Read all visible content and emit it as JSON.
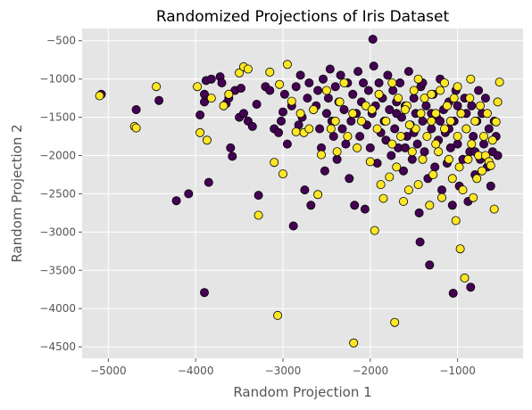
{
  "chart_data": {
    "type": "scatter",
    "title": "Randomized Projections of Iris Dataset",
    "xlabel": "Random Projection 1",
    "ylabel": "Random Projection 2",
    "xlim": [
      -5300,
      -250
    ],
    "ylim": [
      -4650,
      -340
    ],
    "xticks": [
      -5000,
      -4000,
      -3000,
      -2000,
      -1000
    ],
    "yticks": [
      -4500,
      -4000,
      -3500,
      -3000,
      -2500,
      -2000,
      -1500,
      -1000,
      -500
    ],
    "xtick_labels": [
      "−5000",
      "−4000",
      "−3000",
      "−2000",
      "−1000"
    ],
    "ytick_labels": [
      "−4500",
      "−4000",
      "−3500",
      "−3000",
      "−2500",
      "−2000",
      "−1500",
      "−1000",
      "−500"
    ],
    "grid": true,
    "style": "ggplot",
    "series": [
      {
        "color": "#440154",
        "points": [
          [
            -5080,
            -1200
          ],
          [
            -4680,
            -1400
          ],
          [
            -4420,
            -1280
          ],
          [
            -4220,
            -2590
          ],
          [
            -4080,
            -2500
          ],
          [
            -3950,
            -1470
          ],
          [
            -3900,
            -1300
          ],
          [
            -3900,
            -1200
          ],
          [
            -3880,
            -1020
          ],
          [
            -3850,
            -2350
          ],
          [
            -3820,
            -1000
          ],
          [
            -3900,
            -3790
          ],
          [
            -3720,
            -970
          ],
          [
            -3700,
            -1050
          ],
          [
            -3650,
            -1320
          ],
          [
            -3620,
            -1250
          ],
          [
            -3600,
            -1900
          ],
          [
            -3580,
            -2010
          ],
          [
            -3550,
            -1150
          ],
          [
            -3500,
            -1500
          ],
          [
            -3480,
            -1120
          ],
          [
            -3450,
            -1450
          ],
          [
            -3400,
            -1550
          ],
          [
            -3350,
            -1620
          ],
          [
            -3300,
            -1330
          ],
          [
            -3280,
            -2520
          ],
          [
            -3200,
            -1100
          ],
          [
            -3150,
            -1150
          ],
          [
            -3100,
            -1650
          ],
          [
            -3050,
            -1700
          ],
          [
            -3020,
            -1550
          ],
          [
            -3000,
            -1430
          ],
          [
            -2980,
            -1200
          ],
          [
            -2950,
            -1850
          ],
          [
            -2900,
            -1350
          ],
          [
            -2880,
            -2920
          ],
          [
            -2850,
            -1100
          ],
          [
            -2820,
            -1600
          ],
          [
            -2800,
            -950
          ],
          [
            -2780,
            -1500
          ],
          [
            -2750,
            -2450
          ],
          [
            -2720,
            -1250
          ],
          [
            -2700,
            -1050
          ],
          [
            -2680,
            -2650
          ],
          [
            -2650,
            -1400
          ],
          [
            -2620,
            -1350
          ],
          [
            -2600,
            -1150
          ],
          [
            -2580,
            -1650
          ],
          [
            -2560,
            -1900
          ],
          [
            -2540,
            -1000
          ],
          [
            -2520,
            -2200
          ],
          [
            -2500,
            -1450
          ],
          [
            -2480,
            -1250
          ],
          [
            -2460,
            -870
          ],
          [
            -2440,
            -1550
          ],
          [
            -2420,
            -1750
          ],
          [
            -2400,
            -1100
          ],
          [
            -2380,
            -2050
          ],
          [
            -2360,
            -1300
          ],
          [
            -2340,
            -950
          ],
          [
            -2320,
            -1650
          ],
          [
            -2300,
            -1400
          ],
          [
            -2280,
            -1850
          ],
          [
            -2260,
            -1050
          ],
          [
            -2240,
            -2300
          ],
          [
            -2220,
            -1550
          ],
          [
            -2200,
            -1200
          ],
          [
            -2180,
            -2650
          ],
          [
            -2160,
            -1450
          ],
          [
            -2140,
            -900
          ],
          [
            -2120,
            -1750
          ],
          [
            -2100,
            -1300
          ],
          [
            -2080,
            -1050
          ],
          [
            -2060,
            -2700
          ],
          [
            -2040,
            -1600
          ],
          [
            -2020,
            -1150
          ],
          [
            -2000,
            -1900
          ],
          [
            -1980,
            -1450
          ],
          [
            -1970,
            -480
          ],
          [
            -1960,
            -830
          ],
          [
            -1940,
            -1350
          ],
          [
            -1920,
            -2100
          ],
          [
            -1900,
            -1050
          ],
          [
            -1880,
            -1700
          ],
          [
            -1860,
            -1250
          ],
          [
            -1840,
            -1550
          ],
          [
            -1820,
            -1800
          ],
          [
            -1800,
            -950
          ],
          [
            -1780,
            -1400
          ],
          [
            -1760,
            -2000
          ],
          [
            -1740,
            -1150
          ],
          [
            -1720,
            -1650
          ],
          [
            -1700,
            -1300
          ],
          [
            -1680,
            -1900
          ],
          [
            -1660,
            -1050
          ],
          [
            -1640,
            -1500
          ],
          [
            -1620,
            -2200
          ],
          [
            -1600,
            -1350
          ],
          [
            -1580,
            -1750
          ],
          [
            -1560,
            -900
          ],
          [
            -1540,
            -1600
          ],
          [
            -1520,
            -2050
          ],
          [
            -1500,
            -1250
          ],
          [
            -1480,
            -1450
          ],
          [
            -1460,
            -1850
          ],
          [
            -1440,
            -2750
          ],
          [
            -1430,
            -3130
          ],
          [
            -1420,
            -1100
          ],
          [
            -1400,
            -1550
          ],
          [
            -1380,
            -1950
          ],
          [
            -1360,
            -1350
          ],
          [
            -1340,
            -2300
          ],
          [
            -1320,
            -3430
          ],
          [
            -1300,
            -1650
          ],
          [
            -1280,
            -1200
          ],
          [
            -1260,
            -2150
          ],
          [
            -1240,
            -1500
          ],
          [
            -1220,
            -1800
          ],
          [
            -1200,
            -1000
          ],
          [
            -1180,
            -2450
          ],
          [
            -1160,
            -1400
          ],
          [
            -1140,
            -1700
          ],
          [
            -1120,
            -2100
          ],
          [
            -1100,
            -1300
          ],
          [
            -1080,
            -1900
          ],
          [
            -1060,
            -2650
          ],
          [
            -1050,
            -3800
          ],
          [
            -1040,
            -1550
          ],
          [
            -1020,
            -1150
          ],
          [
            -1000,
            -1850
          ],
          [
            -980,
            -2400
          ],
          [
            -960,
            -1450
          ],
          [
            -940,
            -2050
          ],
          [
            -920,
            -1250
          ],
          [
            -900,
            -1650
          ],
          [
            -880,
            -2600
          ],
          [
            -860,
            -1950
          ],
          [
            -850,
            -3720
          ],
          [
            -840,
            -1350
          ],
          [
            -820,
            -1750
          ],
          [
            -800,
            -2250
          ],
          [
            -780,
            -1550
          ],
          [
            -760,
            -1150
          ],
          [
            -740,
            -2050
          ],
          [
            -720,
            -1450
          ],
          [
            -700,
            -1850
          ],
          [
            -680,
            -1250
          ],
          [
            -660,
            -2150
          ],
          [
            -640,
            -1650
          ],
          [
            -620,
            -2400
          ],
          [
            -600,
            -1950
          ],
          [
            -580,
            -1550
          ],
          [
            -560,
            -1750
          ],
          [
            -540,
            -2000
          ],
          [
            -1700,
            -1450
          ],
          [
            -1500,
            -1700
          ],
          [
            -1300,
            -1450
          ],
          [
            -1100,
            -1650
          ],
          [
            -900,
            -1450
          ],
          [
            -1600,
            -1900
          ],
          [
            -1400,
            -1050
          ],
          [
            -1200,
            -1550
          ],
          [
            -1000,
            -1350
          ],
          [
            -800,
            -1950
          ]
        ]
      },
      {
        "color": "#fde725",
        "points": [
          [
            -5100,
            -1220
          ],
          [
            -4700,
            -1620
          ],
          [
            -4680,
            -1640
          ],
          [
            -4450,
            -1100
          ],
          [
            -3980,
            -1100
          ],
          [
            -3950,
            -1700
          ],
          [
            -3870,
            -1800
          ],
          [
            -3820,
            -1250
          ],
          [
            -3680,
            -1350
          ],
          [
            -3620,
            -1200
          ],
          [
            -3500,
            -920
          ],
          [
            -3450,
            -840
          ],
          [
            -3400,
            -870
          ],
          [
            -3280,
            -2780
          ],
          [
            -3150,
            -910
          ],
          [
            -3100,
            -2090
          ],
          [
            -3060,
            -4090
          ],
          [
            -3040,
            -1070
          ],
          [
            -3000,
            -2240
          ],
          [
            -2950,
            -810
          ],
          [
            -2900,
            -1290
          ],
          [
            -2850,
            -1690
          ],
          [
            -2800,
            -1450
          ],
          [
            -2760,
            -1700
          ],
          [
            -2700,
            -1650
          ],
          [
            -2650,
            -1400
          ],
          [
            -2600,
            -2510
          ],
          [
            -2560,
            -1990
          ],
          [
            -2500,
            -1150
          ],
          [
            -2450,
            -1650
          ],
          [
            -2400,
            -1550
          ],
          [
            -2380,
            -1950
          ],
          [
            -2350,
            -1300
          ],
          [
            -2300,
            -1050
          ],
          [
            -2260,
            -1750
          ],
          [
            -2200,
            -1450
          ],
          [
            -2190,
            -4450
          ],
          [
            -2150,
            -1900
          ],
          [
            -2100,
            -1550
          ],
          [
            -2050,
            -1350
          ],
          [
            -2000,
            -2080
          ],
          [
            -1980,
            -1400
          ],
          [
            -1950,
            -2980
          ],
          [
            -1920,
            -1650
          ],
          [
            -1880,
            -2380
          ],
          [
            -1850,
            -2560
          ],
          [
            -1820,
            -1550
          ],
          [
            -1780,
            -2280
          ],
          [
            -1750,
            -1850
          ],
          [
            -1720,
            -4180
          ],
          [
            -1700,
            -2150
          ],
          [
            -1680,
            -1250
          ],
          [
            -1650,
            -1750
          ],
          [
            -1620,
            -2600
          ],
          [
            -1580,
            -1350
          ],
          [
            -1560,
            -2450
          ],
          [
            -1520,
            -1950
          ],
          [
            -1500,
            -1150
          ],
          [
            -1480,
            -1650
          ],
          [
            -1450,
            -2380
          ],
          [
            -1420,
            -1450
          ],
          [
            -1400,
            -2050
          ],
          [
            -1380,
            -1250
          ],
          [
            -1350,
            -1750
          ],
          [
            -1320,
            -2650
          ],
          [
            -1300,
            -1550
          ],
          [
            -1280,
            -2250
          ],
          [
            -1250,
            -1450
          ],
          [
            -1220,
            -1950
          ],
          [
            -1200,
            -1150
          ],
          [
            -1180,
            -2550
          ],
          [
            -1150,
            -1650
          ],
          [
            -1120,
            -1350
          ],
          [
            -1100,
            -2050
          ],
          [
            -1080,
            -1550
          ],
          [
            -1060,
            -2300
          ],
          [
            -1040,
            -1250
          ],
          [
            -1020,
            -2850
          ],
          [
            -1000,
            -1750
          ],
          [
            -980,
            -2150
          ],
          [
            -970,
            -3220
          ],
          [
            -960,
            -1450
          ],
          [
            -940,
            -2450
          ],
          [
            -920,
            -3600
          ],
          [
            -900,
            -1650
          ],
          [
            -880,
            -2050
          ],
          [
            -860,
            -1250
          ],
          [
            -840,
            -1850
          ],
          [
            -820,
            -2550
          ],
          [
            -800,
            -1550
          ],
          [
            -780,
            -2300
          ],
          [
            -760,
            -2000
          ],
          [
            -740,
            -1350
          ],
          [
            -720,
            -2200
          ],
          [
            -700,
            -1750
          ],
          [
            -680,
            -2000
          ],
          [
            -660,
            -1450
          ],
          [
            -640,
            -2080
          ],
          [
            -620,
            -2130
          ],
          [
            -600,
            -1800
          ],
          [
            -580,
            -2700
          ],
          [
            -560,
            -1560
          ],
          [
            -540,
            -1300
          ],
          [
            -520,
            -1040
          ],
          [
            -1900,
            -1200
          ],
          [
            -1750,
            -1050
          ],
          [
            -1600,
            -1400
          ],
          [
            -1450,
            -1000
          ],
          [
            -1300,
            -1200
          ],
          [
            -1150,
            -1050
          ],
          [
            -1000,
            -1100
          ],
          [
            -850,
            -1000
          ],
          [
            -1550,
            -1600
          ],
          [
            -1250,
            -1850
          ]
        ]
      }
    ]
  }
}
